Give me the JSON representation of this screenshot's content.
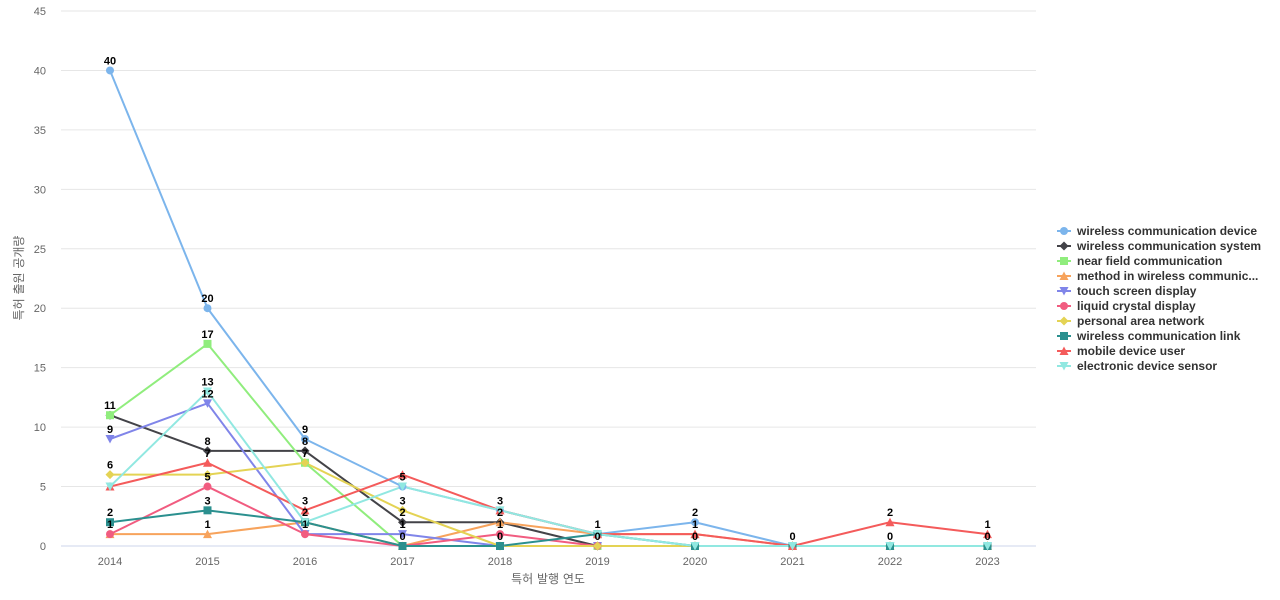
{
  "chart_data": {
    "type": "line",
    "xlabel": "특허 발행 연도",
    "ylabel": "특허 출원 공개량",
    "ylim": [
      0,
      45
    ],
    "yticks": [
      0,
      5,
      10,
      15,
      20,
      25,
      30,
      35,
      40,
      45
    ],
    "categories": [
      "2014",
      "2015",
      "2016",
      "2017",
      "2018",
      "2019",
      "2020",
      "2021",
      "2022",
      "2023"
    ],
    "grid": true,
    "legend_position": "right",
    "series": [
      {
        "name": "wireless communication device",
        "color": "#7cb5ec",
        "marker": "circle",
        "values": [
          40,
          20,
          9,
          5,
          3,
          1,
          2,
          0,
          0,
          0
        ]
      },
      {
        "name": "wireless communication system",
        "color": "#434348",
        "marker": "diamond",
        "values": [
          11,
          8,
          8,
          2,
          2,
          0,
          0,
          0,
          0,
          0
        ]
      },
      {
        "name": "near field communication",
        "color": "#90ed7d",
        "marker": "square",
        "values": [
          11,
          17,
          7,
          0,
          0,
          0,
          0,
          0,
          0,
          0
        ]
      },
      {
        "name": "method in wireless communic...",
        "color": "#f7a35c",
        "marker": "triangle",
        "values": [
          1,
          1,
          2,
          0,
          2,
          1,
          1,
          0,
          0,
          0
        ]
      },
      {
        "name": "touch screen display",
        "color": "#8085e9",
        "marker": "triangle-down",
        "values": [
          9,
          12,
          1,
          1,
          0,
          0,
          0,
          0,
          0,
          0
        ]
      },
      {
        "name": "liquid crystal display",
        "color": "#f15c80",
        "marker": "circle",
        "values": [
          1,
          5,
          1,
          0,
          1,
          0,
          0,
          0,
          0,
          0
        ]
      },
      {
        "name": "personal area network",
        "color": "#e4d354",
        "marker": "diamond",
        "values": [
          6,
          6,
          7,
          3,
          0,
          0,
          0,
          0,
          0,
          0
        ]
      },
      {
        "name": "wireless communication link",
        "color": "#2b908f",
        "marker": "square",
        "values": [
          2,
          3,
          2,
          0,
          0,
          1,
          0,
          0,
          0,
          0
        ]
      },
      {
        "name": "mobile device user",
        "color": "#f45b5b",
        "marker": "triangle",
        "values": [
          5,
          7,
          3,
          6,
          3,
          1,
          1,
          0,
          2,
          1
        ]
      },
      {
        "name": "electronic device sensor",
        "color": "#91e8e1",
        "marker": "triangle-down",
        "values": [
          5,
          13,
          2,
          5,
          3,
          1,
          0,
          0,
          0,
          0
        ]
      }
    ],
    "data_labels": [
      {
        "category": "2014",
        "values": [
          40,
          11,
          9,
          6,
          2,
          1
        ]
      },
      {
        "category": "2015",
        "values": [
          20,
          17,
          13,
          12,
          8,
          7,
          5,
          3,
          1
        ]
      },
      {
        "category": "2016",
        "values": [
          9,
          8,
          7,
          3,
          2,
          1
        ]
      },
      {
        "category": "2017",
        "values": [
          5,
          3,
          2,
          1,
          0
        ]
      },
      {
        "category": "2018",
        "values": [
          3,
          2,
          1,
          0
        ]
      },
      {
        "category": "2019",
        "values": [
          1,
          0
        ]
      },
      {
        "category": "2020",
        "values": [
          2,
          1,
          0
        ]
      },
      {
        "category": "2021",
        "values": [
          0
        ]
      },
      {
        "category": "2022",
        "values": [
          2,
          0
        ]
      },
      {
        "category": "2023",
        "values": [
          1,
          0
        ]
      }
    ]
  }
}
